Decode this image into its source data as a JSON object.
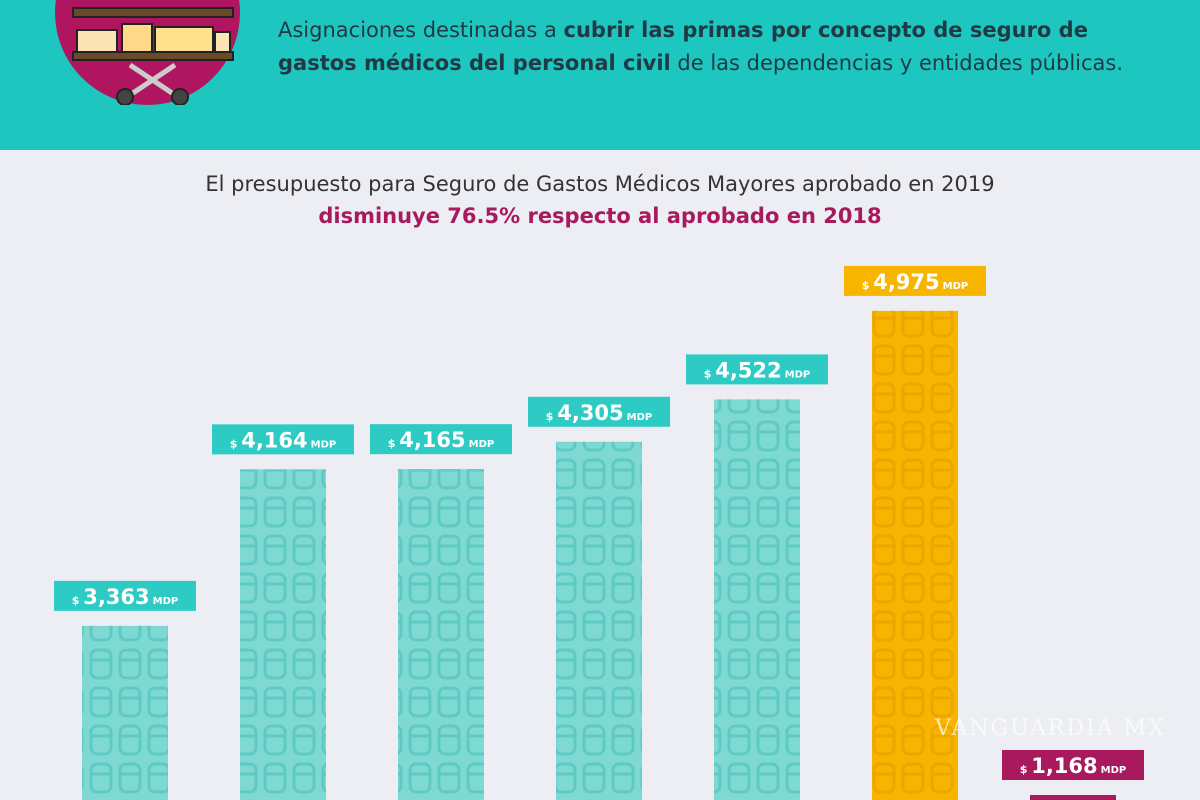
{
  "header": {
    "icon": "stretcher-bed-icon",
    "desc_pre": "Asignaciones destinadas a ",
    "desc_bold": "cubrir las primas por concepto de seguro de gastos médicos del personal civil",
    "desc_post": " de las dependencias y entidades públicas."
  },
  "title_line1": "El presupuesto para Seguro de Gastos Médicos Mayores aprobado en 2019",
  "title_line2": "disminuye 76.5% respecto al aprobado en 2018",
  "watermark": "VANGUARDIA MX",
  "chart_data": {
    "type": "bar",
    "values": [
      3363,
      4164,
      4165,
      4305,
      4522,
      4975,
      1168
    ],
    "labels": [
      "$ 3,363 MDP",
      "$ 4,164 MDP",
      "$ 4,165 MDP",
      "$ 4,305 MDP",
      "$ 4,522 MDP",
      "$ 4,975 MDP",
      "$ 1,168 MDP"
    ],
    "currency_prefix": "$",
    "unit": "MDP",
    "colors": [
      "#7ed9d3",
      "#7ed9d3",
      "#7ed9d3",
      "#7ed9d3",
      "#7ed9d3",
      "#f7b500",
      "#a8195e"
    ],
    "label_colors": [
      "#2ecbc4",
      "#2ecbc4",
      "#2ecbc4",
      "#2ecbc4",
      "#2ecbc4",
      "#f7b500",
      "#a8195e"
    ]
  }
}
